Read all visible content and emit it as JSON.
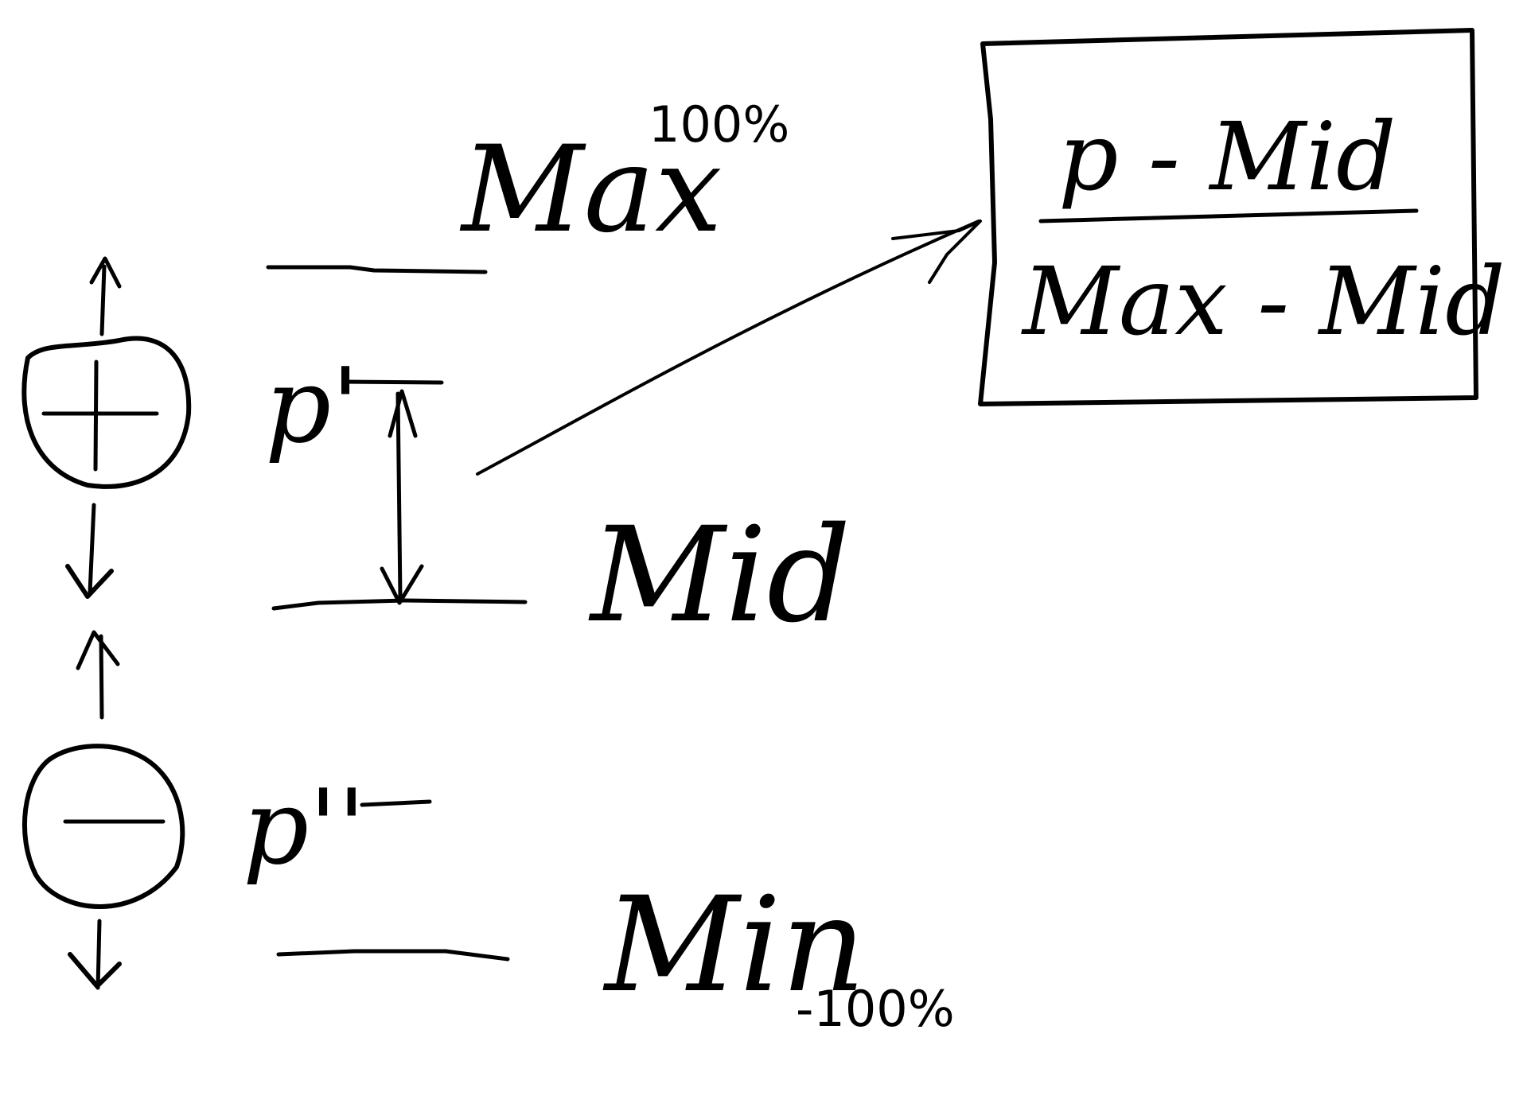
{
  "labels": {
    "max": "Max",
    "max_pct": "100%",
    "mid": "Mid",
    "min": "Min",
    "min_pct": "-100%",
    "p_prime": "p'",
    "p_double_prime": "p''"
  },
  "formula": {
    "numerator": "p - Mid",
    "denominator": "Max - Mid"
  },
  "icons": {
    "positive": "plus-circle-icon",
    "negative": "minus-circle-icon"
  },
  "colors": {
    "ink": "#000000",
    "background": "#ffffff"
  }
}
